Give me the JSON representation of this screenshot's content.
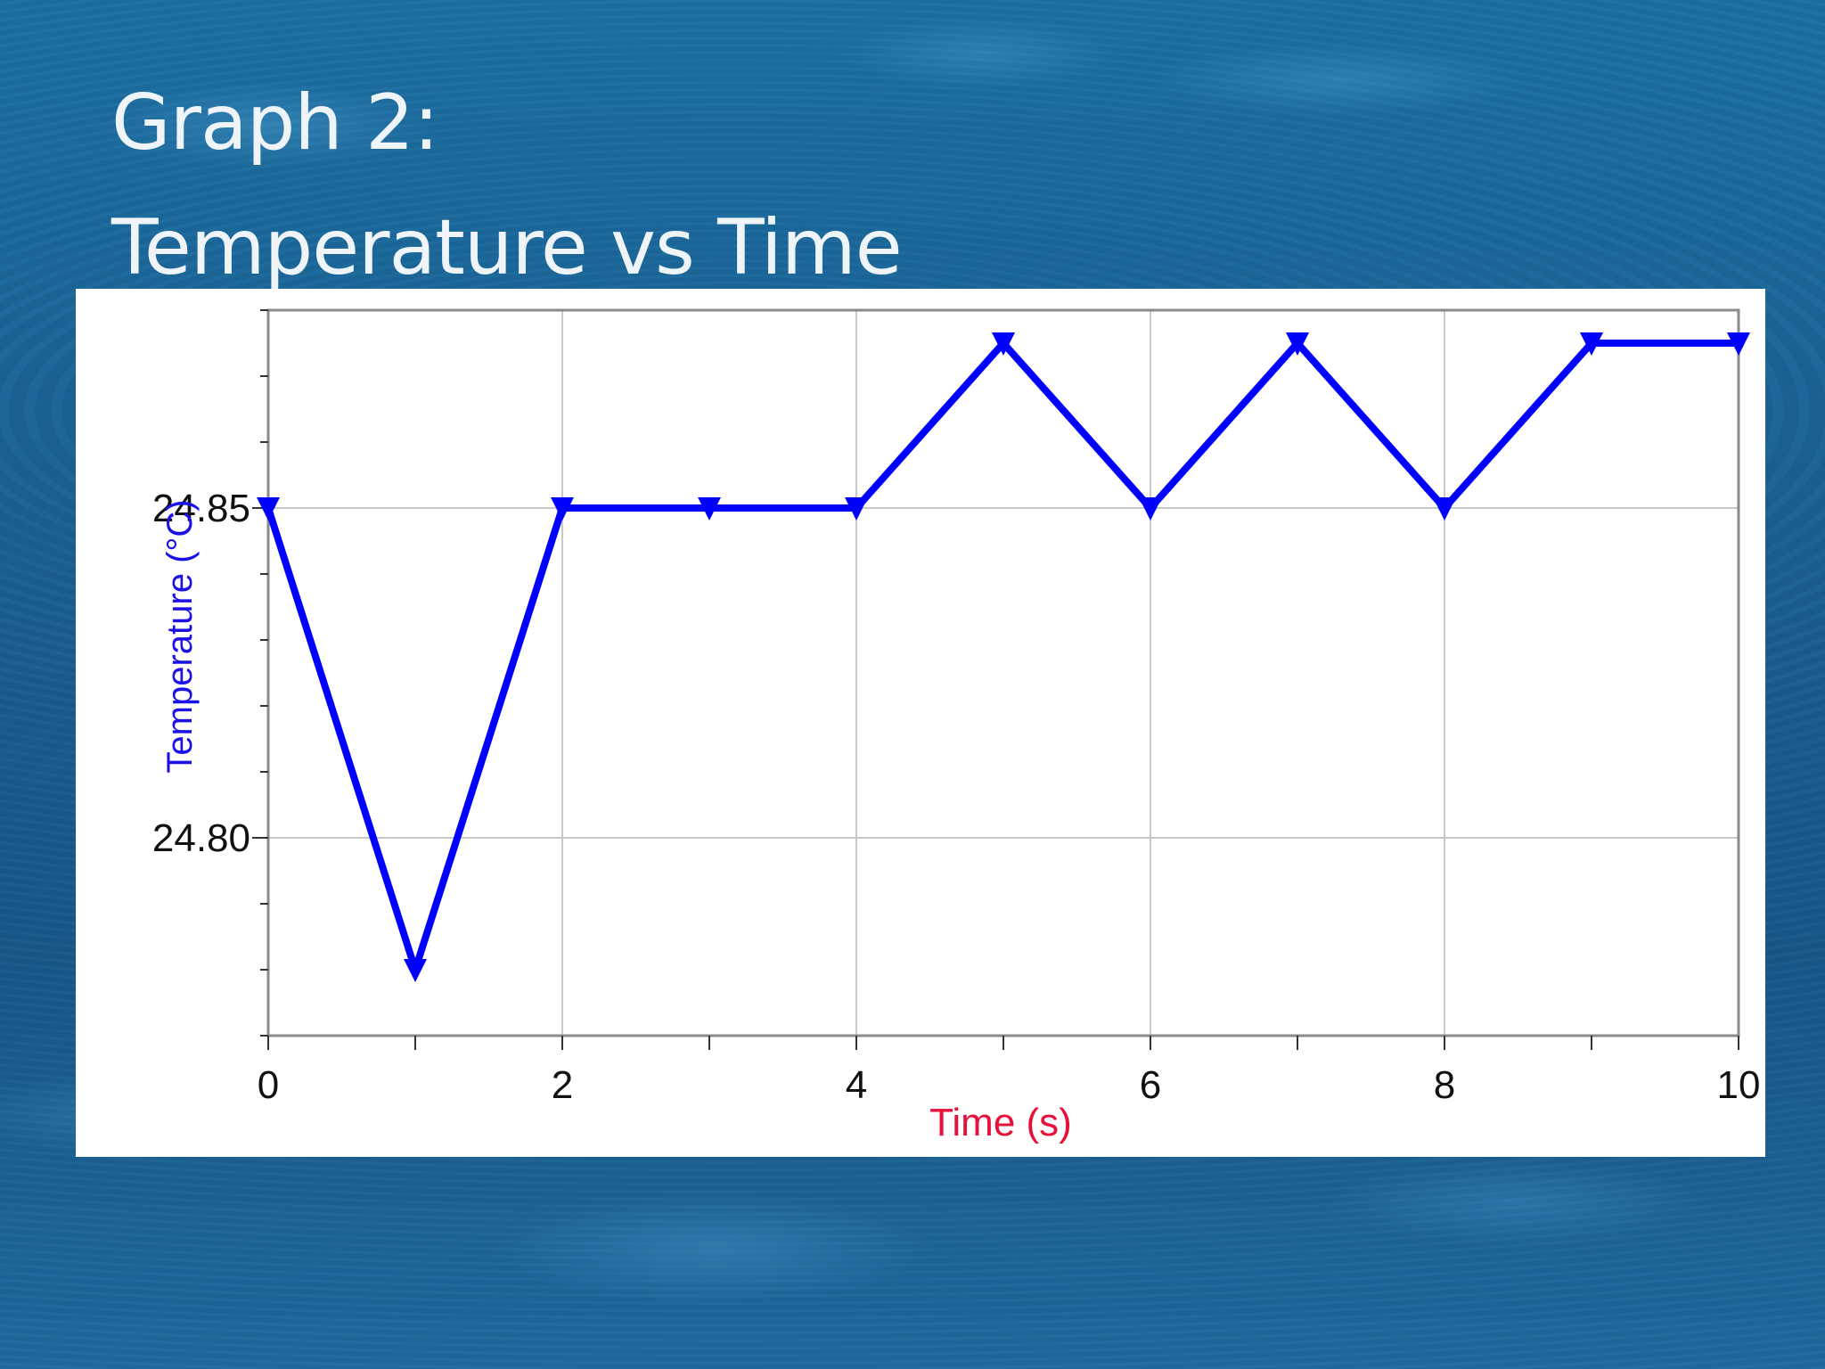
{
  "slide": {
    "title_line1": "Graph 2:",
    "title_line2": "Temperature vs Time"
  },
  "colors": {
    "series": "#0000ff",
    "ylabel": "#1a10e8",
    "xlabel": "#e8103a",
    "grid": "#c8c8c8"
  },
  "chart_data": {
    "type": "line",
    "title": "Temperature vs Time",
    "xlabel": "Time (s)",
    "ylabel": "Temperature (°C)",
    "xlim": [
      0,
      10
    ],
    "ylim": [
      24.77,
      24.88
    ],
    "xticks": [
      0,
      2,
      4,
      6,
      8,
      10
    ],
    "xticks_minor": [
      1,
      3,
      5,
      7,
      9
    ],
    "yticks": [
      24.8,
      24.85
    ],
    "ytick_labels": [
      "24.80",
      "24.85"
    ],
    "grid": true,
    "marker": "triangle-down",
    "series": [
      {
        "x": [
          0,
          1,
          2,
          3,
          4,
          5,
          6,
          7,
          8,
          9,
          10
        ],
        "y": [
          24.85,
          24.78,
          24.85,
          24.85,
          24.85,
          24.875,
          24.85,
          24.875,
          24.85,
          24.875,
          24.875
        ]
      }
    ]
  }
}
